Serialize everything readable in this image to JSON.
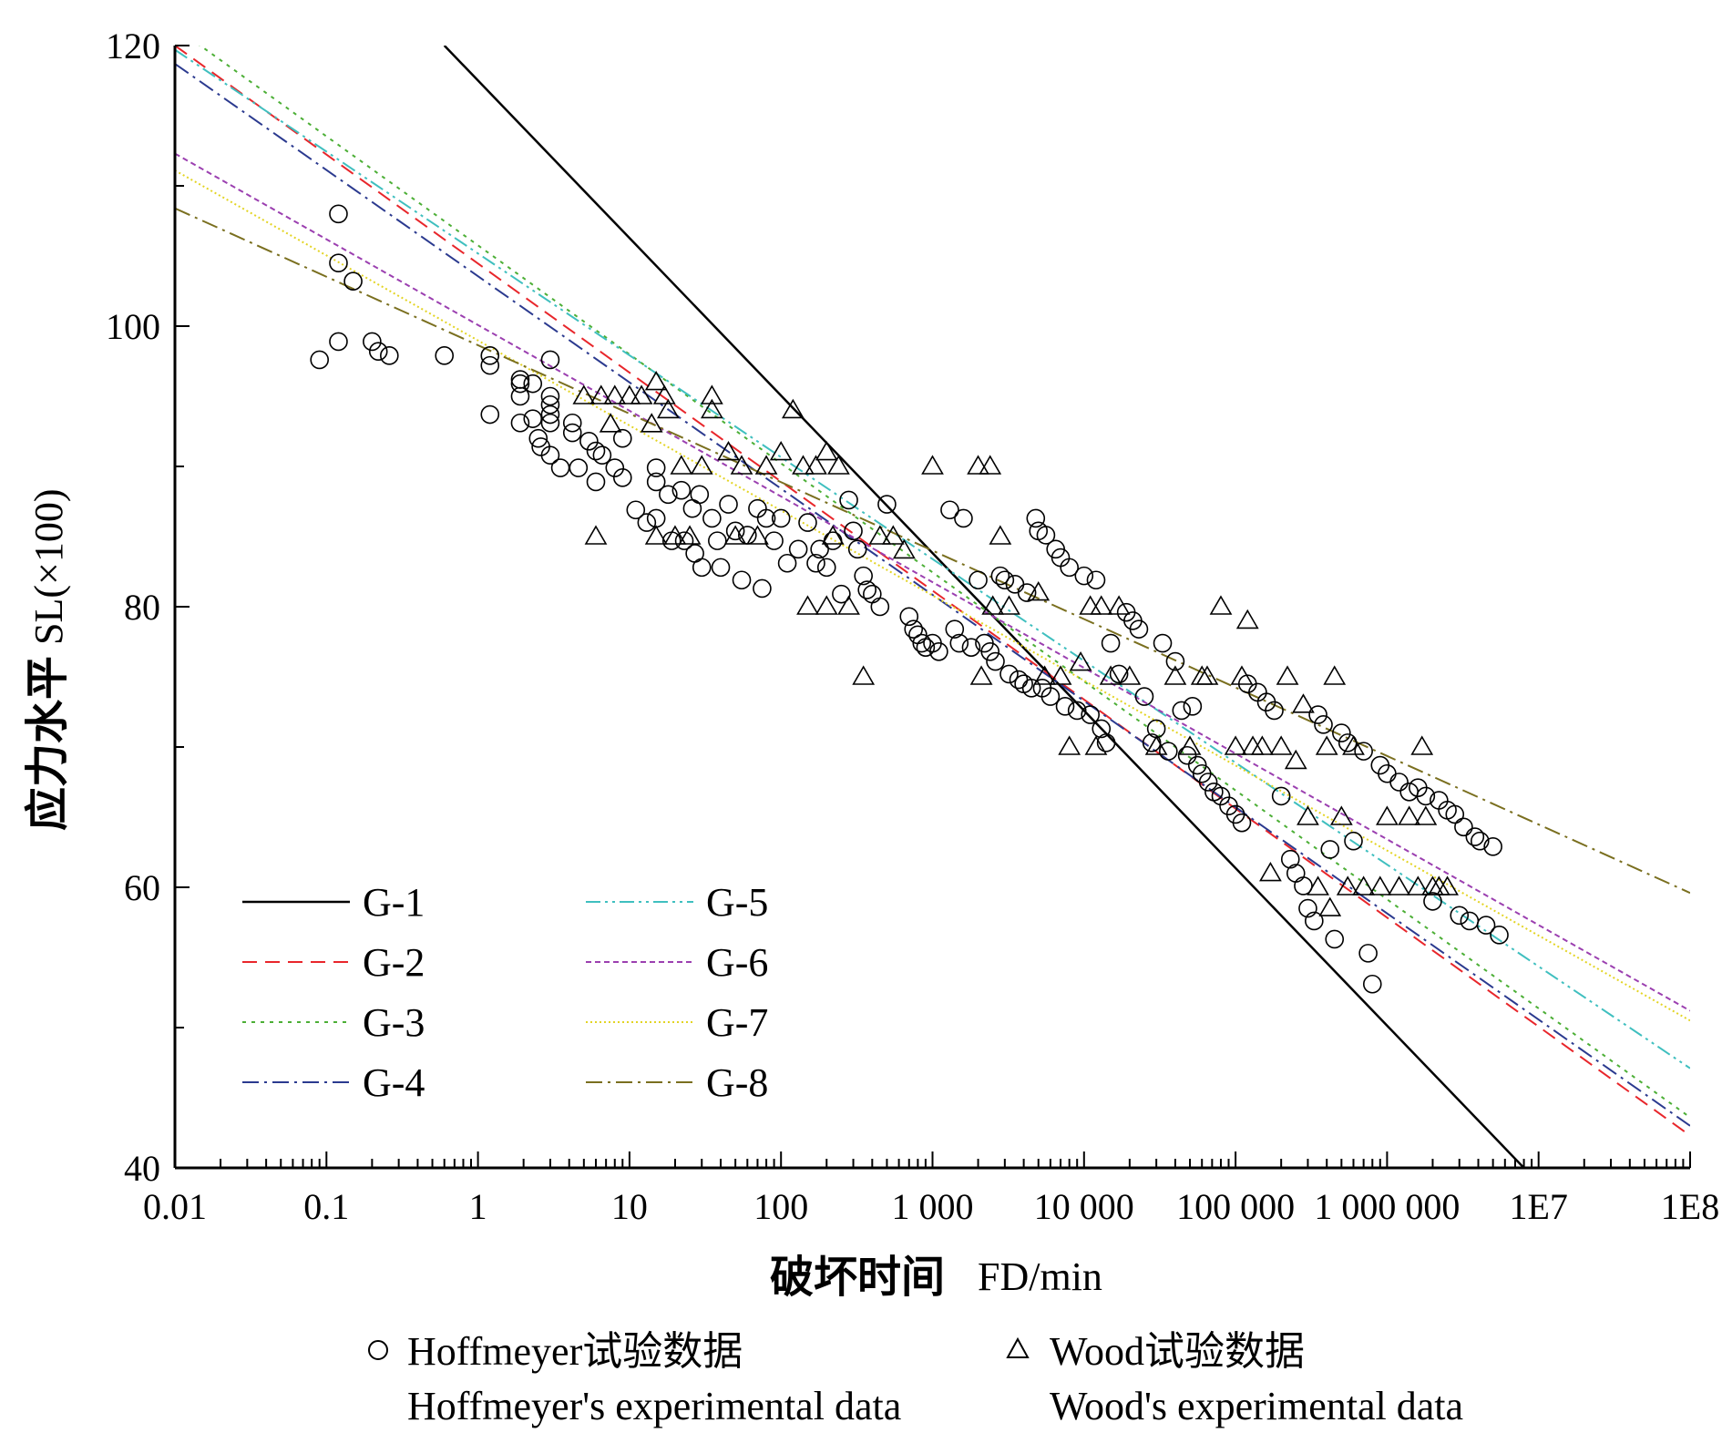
{
  "chart_data": {
    "type": "scatter",
    "xscale": "log",
    "xlim": [
      0.01,
      100000000
    ],
    "ylim": [
      40,
      120
    ],
    "x_tick_values": [
      0.01,
      0.1,
      1,
      10,
      100,
      1000,
      10000,
      100000,
      1000000,
      10000000,
      100000000
    ],
    "x_tick_labels": [
      "0.01",
      "0.1",
      "1",
      "10",
      "100",
      "1 000",
      "10 000",
      "100 000",
      "1 000 000",
      "1E7",
      "1E8"
    ],
    "y_tick_values": [
      40,
      60,
      80,
      100,
      120
    ],
    "y_tick_labels": [
      "40",
      "60",
      "80",
      "100",
      "120"
    ],
    "ylabel_cn": "应力水平",
    "ylabel_en": "SL(×100)",
    "xlabel_cn": "破坏时间",
    "xlabel_en": "FD/min",
    "legend_position": "lower-left",
    "lines": [
      {
        "name": "G-1",
        "color": "#000000",
        "dash": "solid",
        "points": [
          [
            0.6,
            120
          ],
          [
            8000000,
            40
          ]
        ]
      },
      {
        "name": "G-2",
        "color": "#e8262b",
        "dash": "dashed",
        "points": [
          [
            0.01,
            120
          ],
          [
            100000000,
            42.3
          ]
        ]
      },
      {
        "name": "G-3",
        "color": "#4caf36",
        "dash": "dotted",
        "points": [
          [
            0.01,
            121.3
          ],
          [
            100000000,
            43.6
          ]
        ]
      },
      {
        "name": "G-4",
        "color": "#2b3a8f",
        "dash": "dashdot",
        "points": [
          [
            0.01,
            118.7
          ],
          [
            100000000,
            43.0
          ]
        ]
      },
      {
        "name": "G-5",
        "color": "#3fbfbf",
        "dash": "dashdotdot",
        "points": [
          [
            0.01,
            119.7
          ],
          [
            100000000,
            47.1
          ]
        ]
      },
      {
        "name": "G-6",
        "color": "#9b3fb0",
        "dash": "shortdash",
        "points": [
          [
            0.01,
            112.3
          ],
          [
            100000000,
            51.2
          ]
        ]
      },
      {
        "name": "G-7",
        "color": "#e3d423",
        "dash": "shortdot",
        "points": [
          [
            0.01,
            111.1
          ],
          [
            100000000,
            50.5
          ]
        ]
      },
      {
        "name": "G-8",
        "color": "#7a6f1f",
        "dash": "dashdot",
        "points": [
          [
            0.01,
            108.4
          ],
          [
            100000000,
            59.6
          ]
        ]
      }
    ],
    "scatter_series": [
      {
        "name_cn": "Hoffmeyer试验数据",
        "name_en": "Hoffmeyer's experimental data",
        "marker": "circle",
        "points": [
          [
            0.09,
            97.6
          ],
          [
            0.12,
            98.9
          ],
          [
            0.12,
            108
          ],
          [
            0.12,
            104.5
          ],
          [
            0.15,
            103.2
          ],
          [
            0.2,
            98.9
          ],
          [
            0.22,
            98.2
          ],
          [
            0.26,
            97.9
          ],
          [
            0.6,
            97.9
          ],
          [
            1.2,
            97.9
          ],
          [
            1.2,
            97.2
          ],
          [
            1.2,
            93.7
          ],
          [
            1.9,
            96.2
          ],
          [
            1.9,
            95.9
          ],
          [
            1.9,
            95
          ],
          [
            1.9,
            93.1
          ],
          [
            2.3,
            95.9
          ],
          [
            2.3,
            93.4
          ],
          [
            2.5,
            92
          ],
          [
            2.6,
            91.4
          ],
          [
            3,
            97.6
          ],
          [
            3,
            95
          ],
          [
            3,
            94.4
          ],
          [
            3,
            93.7
          ],
          [
            3,
            93.1
          ],
          [
            3,
            90.8
          ],
          [
            3.5,
            89.9
          ],
          [
            4.2,
            93.1
          ],
          [
            4.2,
            92.4
          ],
          [
            4.6,
            89.9
          ],
          [
            5.4,
            91.8
          ],
          [
            6,
            91.1
          ],
          [
            6,
            88.9
          ],
          [
            6.6,
            90.8
          ],
          [
            8,
            89.9
          ],
          [
            9,
            92
          ],
          [
            9,
            89.2
          ],
          [
            11,
            86.9
          ],
          [
            13,
            86
          ],
          [
            15,
            89.9
          ],
          [
            15,
            88.9
          ],
          [
            15,
            86.3
          ],
          [
            18,
            88
          ],
          [
            19,
            84.7
          ],
          [
            22,
            88.3
          ],
          [
            23,
            84.7
          ],
          [
            26,
            87
          ],
          [
            27,
            83.8
          ],
          [
            29,
            88
          ],
          [
            30,
            82.8
          ],
          [
            35,
            86.3
          ],
          [
            38,
            84.7
          ],
          [
            40,
            82.8
          ],
          [
            45,
            87.3
          ],
          [
            50,
            85.4
          ],
          [
            55,
            81.9
          ],
          [
            60,
            85.1
          ],
          [
            70,
            87
          ],
          [
            75,
            81.3
          ],
          [
            80,
            86.3
          ],
          [
            90,
            84.7
          ],
          [
            100,
            86.3
          ],
          [
            110,
            83.1
          ],
          [
            130,
            84.1
          ],
          [
            150,
            86
          ],
          [
            170,
            83.1
          ],
          [
            180,
            84.1
          ],
          [
            200,
            82.8
          ],
          [
            220,
            84.7
          ],
          [
            250,
            80.9
          ],
          [
            280,
            87.6
          ],
          [
            300,
            85.4
          ],
          [
            320,
            84.1
          ],
          [
            350,
            82.2
          ],
          [
            370,
            81.2
          ],
          [
            400,
            80.9
          ],
          [
            450,
            80
          ],
          [
            500,
            87.3
          ],
          [
            700,
            79.3
          ],
          [
            750,
            78.4
          ],
          [
            800,
            78
          ],
          [
            850,
            77.4
          ],
          [
            900,
            77.1
          ],
          [
            1000,
            77.4
          ],
          [
            1100,
            76.8
          ],
          [
            1300,
            86.9
          ],
          [
            1400,
            78.4
          ],
          [
            1500,
            77.4
          ],
          [
            1600,
            86.3
          ],
          [
            1800,
            77.1
          ],
          [
            2000,
            81.9
          ],
          [
            2200,
            77.4
          ],
          [
            2400,
            76.8
          ],
          [
            2600,
            76.1
          ],
          [
            2800,
            82.2
          ],
          [
            3000,
            81.9
          ],
          [
            3200,
            75.2
          ],
          [
            3500,
            81.6
          ],
          [
            3700,
            74.8
          ],
          [
            4000,
            74.5
          ],
          [
            4200,
            81
          ],
          [
            4500,
            74.2
          ],
          [
            4800,
            86.3
          ],
          [
            5000,
            85.4
          ],
          [
            5300,
            74.2
          ],
          [
            5600,
            85.1
          ],
          [
            6000,
            73.6
          ],
          [
            6500,
            84.1
          ],
          [
            7000,
            83.5
          ],
          [
            7500,
            72.9
          ],
          [
            8000,
            82.8
          ],
          [
            9000,
            72.6
          ],
          [
            10000,
            82.2
          ],
          [
            11000,
            72.3
          ],
          [
            12000,
            81.9
          ],
          [
            13000,
            71.3
          ],
          [
            14000,
            70.3
          ],
          [
            15000,
            77.4
          ],
          [
            17000,
            75.2
          ],
          [
            19000,
            79.6
          ],
          [
            21000,
            79
          ],
          [
            23000,
            78.4
          ],
          [
            25000,
            73.6
          ],
          [
            28000,
            70.3
          ],
          [
            30000,
            71.3
          ],
          [
            33000,
            77.4
          ],
          [
            36000,
            69.7
          ],
          [
            40000,
            76.1
          ],
          [
            44000,
            72.6
          ],
          [
            48000,
            69.4
          ],
          [
            52000,
            72.9
          ],
          [
            56000,
            68.7
          ],
          [
            60000,
            68.1
          ],
          [
            66000,
            67.5
          ],
          [
            72000,
            66.8
          ],
          [
            80000,
            66.5
          ],
          [
            90000,
            65.8
          ],
          [
            100000,
            65.2
          ],
          [
            110000,
            64.6
          ],
          [
            120000,
            74.5
          ],
          [
            140000,
            73.9
          ],
          [
            160000,
            73.2
          ],
          [
            180000,
            72.6
          ],
          [
            200000,
            66.5
          ],
          [
            230000,
            62
          ],
          [
            250000,
            61
          ],
          [
            280000,
            60.1
          ],
          [
            300000,
            58.5
          ],
          [
            330000,
            57.6
          ],
          [
            350000,
            72.3
          ],
          [
            380000,
            71.6
          ],
          [
            420000,
            62.7
          ],
          [
            450000,
            56.3
          ],
          [
            500000,
            71
          ],
          [
            550000,
            70.3
          ],
          [
            600000,
            63.3
          ],
          [
            700000,
            69.7
          ],
          [
            750000,
            55.3
          ],
          [
            800000,
            53.1
          ],
          [
            900000,
            68.7
          ],
          [
            1000000,
            68.1
          ],
          [
            1200000,
            67.5
          ],
          [
            1400000,
            66.8
          ],
          [
            1600000,
            67.1
          ],
          [
            1800000,
            66.5
          ],
          [
            2000000,
            59
          ],
          [
            2200000,
            66.2
          ],
          [
            2500000,
            65.5
          ],
          [
            2800000,
            65.2
          ],
          [
            3000000,
            58
          ],
          [
            3200000,
            64.3
          ],
          [
            3500000,
            57.6
          ],
          [
            3800000,
            63.6
          ],
          [
            4100000,
            63.3
          ],
          [
            4500000,
            57.3
          ],
          [
            5000000,
            62.9
          ],
          [
            5500000,
            56.6
          ]
        ]
      },
      {
        "name_cn": "Wood试验数据",
        "name_en": "Wood's experimental data",
        "marker": "triangle",
        "points": [
          [
            5,
            95
          ],
          [
            6,
            85
          ],
          [
            6.5,
            95
          ],
          [
            7.5,
            93
          ],
          [
            8,
            95
          ],
          [
            10,
            95
          ],
          [
            12,
            95
          ],
          [
            14,
            93
          ],
          [
            15,
            96
          ],
          [
            15,
            85
          ],
          [
            17,
            95
          ],
          [
            18,
            94
          ],
          [
            20,
            85
          ],
          [
            22,
            90
          ],
          [
            25,
            85
          ],
          [
            30,
            90
          ],
          [
            35,
            95
          ],
          [
            35,
            94
          ],
          [
            45,
            91
          ],
          [
            50,
            85
          ],
          [
            55,
            90
          ],
          [
            70,
            85
          ],
          [
            80,
            90
          ],
          [
            100,
            91
          ],
          [
            120,
            94
          ],
          [
            140,
            90
          ],
          [
            150,
            80
          ],
          [
            170,
            90
          ],
          [
            200,
            80
          ],
          [
            200,
            91
          ],
          [
            220,
            85
          ],
          [
            240,
            90
          ],
          [
            280,
            80
          ],
          [
            350,
            75
          ],
          [
            450,
            85
          ],
          [
            550,
            85
          ],
          [
            650,
            84
          ],
          [
            1000,
            90
          ],
          [
            2000,
            90
          ],
          [
            2400,
            90
          ],
          [
            2500,
            80
          ],
          [
            2800,
            85
          ],
          [
            2100,
            75
          ],
          [
            3200,
            80
          ],
          [
            5000,
            81
          ],
          [
            5500,
            75
          ],
          [
            7000,
            75
          ],
          [
            8000,
            70
          ],
          [
            9500,
            76
          ],
          [
            11000,
            80
          ],
          [
            12000,
            70
          ],
          [
            13000,
            80
          ],
          [
            15000,
            75
          ],
          [
            17000,
            80
          ],
          [
            20000,
            75
          ],
          [
            30000,
            70
          ],
          [
            40000,
            75
          ],
          [
            50000,
            70
          ],
          [
            60000,
            75
          ],
          [
            65000,
            75
          ],
          [
            80000,
            80
          ],
          [
            100000,
            70
          ],
          [
            110000,
            75
          ],
          [
            120000,
            79
          ],
          [
            130000,
            70
          ],
          [
            150000,
            70
          ],
          [
            170000,
            61
          ],
          [
            200000,
            70
          ],
          [
            220000,
            75
          ],
          [
            250000,
            69
          ],
          [
            280000,
            73
          ],
          [
            300000,
            65
          ],
          [
            350000,
            60
          ],
          [
            400000,
            70
          ],
          [
            420000,
            58.5
          ],
          [
            450000,
            75
          ],
          [
            500000,
            65
          ],
          [
            550000,
            60
          ],
          [
            600000,
            70
          ],
          [
            700000,
            60
          ],
          [
            900000,
            60
          ],
          [
            1000000,
            65
          ],
          [
            1200000,
            60
          ],
          [
            1400000,
            65
          ],
          [
            1600000,
            60
          ],
          [
            1700000,
            70
          ],
          [
            1800000,
            65
          ],
          [
            2000000,
            60
          ],
          [
            2200000,
            60
          ],
          [
            2500000,
            60
          ]
        ]
      }
    ]
  }
}
